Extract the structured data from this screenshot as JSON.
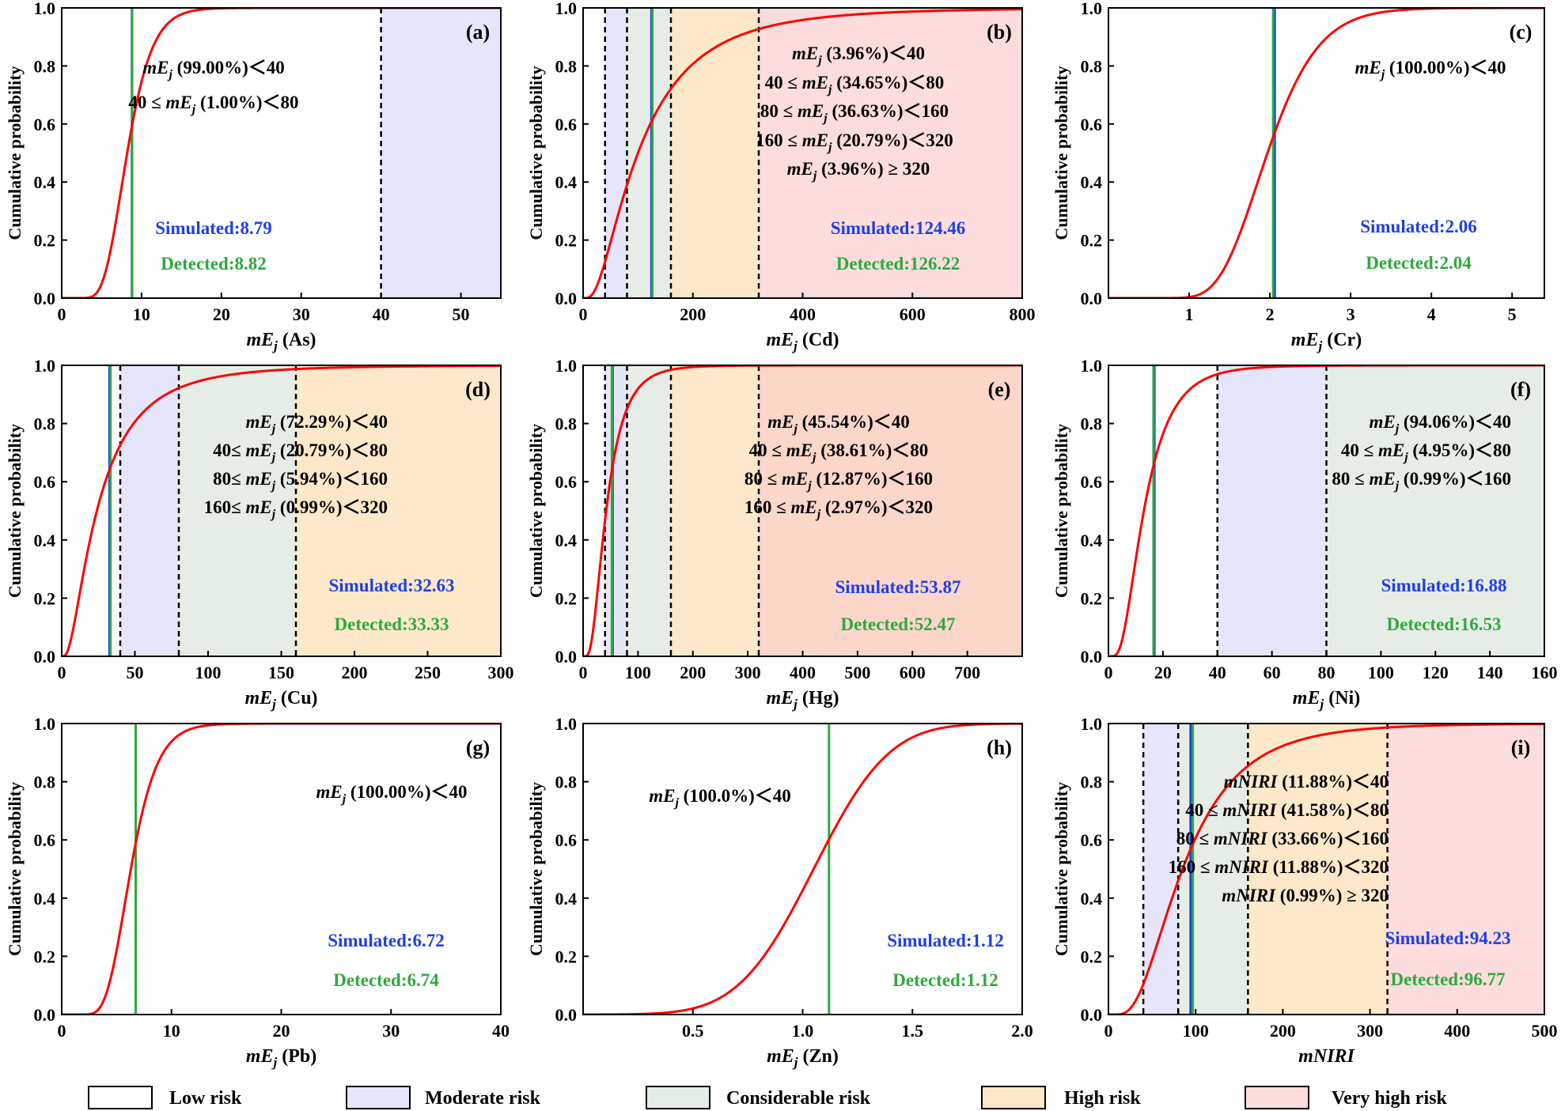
{
  "colors": {
    "low": "#ffffff",
    "moderate": "#e6e6fa",
    "considerable": "#e6ede6",
    "high": "#fde9c9",
    "very_high": "#fcdcdc",
    "very_high_e": "#fbd6c9",
    "curve": "#ff0000",
    "simulated": "#1f3fe6",
    "detected": "#2eaa3e",
    "sim_line": "#1f3fe6",
    "det_line": "#2eaa3e"
  },
  "legend": [
    {
      "key": "low",
      "label": "Low risk"
    },
    {
      "key": "moderate",
      "label": "Moderate risk"
    },
    {
      "key": "considerable",
      "label": "Considerable risk"
    },
    {
      "key": "high",
      "label": "High risk"
    },
    {
      "key": "very_high",
      "label": "Very high risk"
    }
  ],
  "chart_data": [
    {
      "id": "a",
      "type": "line",
      "panel_label": "(a)",
      "ylabel": "Cumulative probability",
      "xlabel": "mEj (As)",
      "xlabel_main": "mE",
      "xlabel_sub": "j",
      "xlabel_suffix": " (As)",
      "xlim": [
        0,
        55
      ],
      "ylim": [
        0,
        1
      ],
      "xticks": [
        0,
        10,
        20,
        30,
        40,
        50
      ],
      "yticks": [
        0.0,
        0.2,
        0.4,
        0.6,
        0.8,
        1.0
      ],
      "dist": {
        "kind": "lognormal",
        "median": 8.2,
        "sigma": 0.3
      },
      "bands": [
        {
          "from": 40,
          "to": 55,
          "key": "moderate"
        }
      ],
      "dashed": [
        40
      ],
      "lines": [
        {
          "x": 8.79,
          "color": "sim_line"
        },
        {
          "x": 8.82,
          "color": "det_line"
        }
      ],
      "annotations": [
        {
          "pre": "",
          "mid": "mE",
          "sub": "j",
          "post": " (99.00%)＜40"
        },
        {
          "pre": "40 ≤ ",
          "mid": "mE",
          "sub": "j",
          "post": " (1.00%)＜80"
        }
      ],
      "simulated": "Simulated:8.79",
      "detected": "Detected:8.82"
    },
    {
      "id": "b",
      "type": "line",
      "panel_label": "(b)",
      "ylabel": "Cumulative probability",
      "xlabel": "mEj (Cd)",
      "xlabel_main": "mE",
      "xlabel_sub": "j",
      "xlabel_suffix": " (Cd)",
      "xlim": [
        0,
        800
      ],
      "ylim": [
        0,
        1
      ],
      "xticks": [
        0,
        200,
        400,
        600,
        800
      ],
      "yticks": [
        0.0,
        0.2,
        0.4,
        0.6,
        0.8,
        1.0
      ],
      "dist": {
        "kind": "lognormal",
        "median": 100,
        "sigma": 0.8
      },
      "bands": [
        {
          "from": 40,
          "to": 80,
          "key": "moderate"
        },
        {
          "from": 80,
          "to": 160,
          "key": "considerable"
        },
        {
          "from": 160,
          "to": 320,
          "key": "high"
        },
        {
          "from": 320,
          "to": 800,
          "key": "very_high"
        }
      ],
      "dashed": [
        40,
        80,
        160,
        320
      ],
      "lines": [
        {
          "x": 124.46,
          "color": "sim_line"
        },
        {
          "x": 126.22,
          "color": "det_line"
        }
      ],
      "annotations": [
        {
          "pre": "",
          "mid": "mE",
          "sub": "j",
          "post": " (3.96%)＜40"
        },
        {
          "pre": "40 ≤ ",
          "mid": "mE",
          "sub": "j",
          "post": " (34.65%)＜80"
        },
        {
          "pre": "80 ≤ ",
          "mid": "mE",
          "sub": "j",
          "post": " (36.63%)＜160"
        },
        {
          "pre": "160 ≤ ",
          "mid": "mE",
          "sub": "j",
          "post": " (20.79%)＜320"
        },
        {
          "pre": "",
          "mid": "mE",
          "sub": "j",
          "post": " (3.96%) ≥ 320"
        }
      ],
      "simulated": "Simulated:124.46",
      "detected": "Detected:126.22"
    },
    {
      "id": "c",
      "type": "line",
      "panel_label": "(c)",
      "ylabel": "Cumulative probability",
      "xlabel": "mEj (Cr)",
      "xlabel_main": "mE",
      "xlabel_sub": "j",
      "xlabel_suffix": " (Cr)",
      "xlim": [
        0,
        5.4
      ],
      "ylim": [
        0,
        1
      ],
      "xticks": [
        1,
        2,
        3,
        4,
        5
      ],
      "yticks": [
        0.0,
        0.2,
        0.4,
        0.6,
        0.8,
        1.0
      ],
      "dist": {
        "kind": "lognormal",
        "median": 1.97,
        "sigma": 0.25
      },
      "bands": [],
      "dashed": [],
      "lines": [
        {
          "x": 2.06,
          "color": "sim_line"
        },
        {
          "x": 2.04,
          "color": "det_line"
        }
      ],
      "annotations": [
        {
          "pre": "",
          "mid": "mE",
          "sub": "j",
          "post": " (100.00%)＜40"
        }
      ],
      "simulated": "Simulated:2.06",
      "detected": "Detected:2.04"
    },
    {
      "id": "d",
      "type": "line",
      "panel_label": "(d)",
      "ylabel": "Cumulative probability",
      "xlabel": "mEj (Cu)",
      "xlabel_main": "mE",
      "xlabel_sub": "j",
      "xlabel_suffix": " (Cu)",
      "xlim": [
        0,
        300
      ],
      "ylim": [
        0,
        1
      ],
      "xticks": [
        0,
        50,
        100,
        150,
        200,
        250,
        300
      ],
      "yticks": [
        0.0,
        0.2,
        0.4,
        0.6,
        0.8,
        1.0
      ],
      "dist": {
        "kind": "lognormal",
        "median": 24,
        "sigma": 0.85
      },
      "bands": [
        {
          "from": 40,
          "to": 80,
          "key": "moderate"
        },
        {
          "from": 80,
          "to": 160,
          "key": "considerable"
        },
        {
          "from": 160,
          "to": 300,
          "key": "high"
        }
      ],
      "dashed": [
        40,
        80,
        160
      ],
      "lines": [
        {
          "x": 32.63,
          "color": "sim_line"
        },
        {
          "x": 33.33,
          "color": "det_line"
        }
      ],
      "annotations": [
        {
          "pre": "",
          "mid": "mE",
          "sub": "j",
          "post": " (72.29%)＜40"
        },
        {
          "pre": "40≤ ",
          "mid": "mE",
          "sub": "j",
          "post": " (20.79%)＜80"
        },
        {
          "pre": "80≤ ",
          "mid": "mE",
          "sub": "j",
          "post": " (5.94%)＜160"
        },
        {
          "pre": "160≤ ",
          "mid": "mE",
          "sub": "j",
          "post": " (0.99%)＜320"
        }
      ],
      "simulated": "Simulated:32.63",
      "detected": "Detected:33.33"
    },
    {
      "id": "e",
      "type": "line",
      "panel_label": "(e)",
      "ylabel": "Cumulative probability",
      "xlabel": "mEj (Hg)",
      "xlabel_main": "mE",
      "xlabel_sub": "j",
      "xlabel_suffix": " (Hg)",
      "xlim": [
        0,
        800
      ],
      "ylim": [
        0,
        1
      ],
      "xticks": [
        0,
        100,
        200,
        300,
        400,
        500,
        600,
        700
      ],
      "yticks": [
        0.0,
        0.2,
        0.4,
        0.6,
        0.8,
        1.0
      ],
      "dist": {
        "kind": "lognormal",
        "median": 42,
        "sigma": 0.62
      },
      "bands": [
        {
          "from": 40,
          "to": 80,
          "key": "moderate"
        },
        {
          "from": 80,
          "to": 160,
          "key": "considerable"
        },
        {
          "from": 160,
          "to": 320,
          "key": "high"
        },
        {
          "from": 320,
          "to": 800,
          "key": "very_high_e"
        }
      ],
      "dashed": [
        40,
        80,
        160,
        320
      ],
      "lines": [
        {
          "x": 53.87,
          "color": "sim_line"
        },
        {
          "x": 52.47,
          "color": "det_line"
        }
      ],
      "annotations": [
        {
          "pre": "",
          "mid": "mE",
          "sub": "j",
          "post": " (45.54%)＜40"
        },
        {
          "pre": "40 ≤ ",
          "mid": "mE",
          "sub": "j",
          "post": " (38.61%)＜80"
        },
        {
          "pre": "80 ≤ ",
          "mid": "mE",
          "sub": "j",
          "post": " (12.87%)＜160"
        },
        {
          "pre": "160 ≤ ",
          "mid": "mE",
          "sub": "j",
          "post": " (2.97%)＜320"
        }
      ],
      "simulated": "Simulated:53.87",
      "detected": "Detected:52.47"
    },
    {
      "id": "f",
      "type": "line",
      "panel_label": "(f)",
      "ylabel": "Cumulative probability",
      "xlabel": "mEj (Ni)",
      "xlabel_main": "mE",
      "xlabel_sub": "j",
      "xlabel_suffix": " (Ni)",
      "xlim": [
        0,
        160
      ],
      "ylim": [
        0,
        1
      ],
      "xticks": [
        0,
        20,
        40,
        60,
        80,
        100,
        120,
        140,
        160
      ],
      "yticks": [
        0.0,
        0.2,
        0.4,
        0.6,
        0.8,
        1.0
      ],
      "dist": {
        "kind": "lognormal",
        "median": 13,
        "sigma": 0.6
      },
      "bands": [
        {
          "from": 40,
          "to": 80,
          "key": "moderate"
        },
        {
          "from": 80,
          "to": 160,
          "key": "considerable"
        }
      ],
      "dashed": [
        40,
        80
      ],
      "lines": [
        {
          "x": 16.88,
          "color": "sim_line"
        },
        {
          "x": 16.53,
          "color": "det_line"
        }
      ],
      "annotations": [
        {
          "pre": "",
          "mid": "mE",
          "sub": "j",
          "post": " (94.06%)＜40"
        },
        {
          "pre": "40 ≤ ",
          "mid": "mE",
          "sub": "j",
          "post": " (4.95%)＜80"
        },
        {
          "pre": "80 ≤ ",
          "mid": "mE",
          "sub": "j",
          "post": " (0.99%)＜160"
        }
      ],
      "simulated": "Simulated:16.88",
      "detected": "Detected:16.53"
    },
    {
      "id": "g",
      "type": "line",
      "panel_label": "(g)",
      "ylabel": "Cumulative probability",
      "xlabel": "mEj (Pb)",
      "xlabel_main": "mE",
      "xlabel_sub": "j",
      "xlabel_suffix": " (Pb)",
      "xlim": [
        0,
        40
      ],
      "ylim": [
        0,
        1
      ],
      "xticks": [
        0,
        10,
        20,
        30,
        40
      ],
      "yticks": [
        0.0,
        0.2,
        0.4,
        0.6,
        0.8,
        1.0
      ],
      "dist": {
        "kind": "lognormal",
        "median": 6.3,
        "sigma": 0.3
      },
      "bands": [],
      "dashed": [],
      "lines": [
        {
          "x": 6.74,
          "color": "det_line"
        }
      ],
      "annotations": [
        {
          "pre": "",
          "mid": "mE",
          "sub": "j",
          "post": " (100.00%)＜40"
        }
      ],
      "simulated": "Simulated:6.72",
      "detected": "Detected:6.74"
    },
    {
      "id": "h",
      "type": "line",
      "panel_label": "(h)",
      "ylabel": "Cumulative probability",
      "xlabel": "mEj (Zn)",
      "xlabel_main": "mE",
      "xlabel_sub": "j",
      "xlabel_suffix": " (Zn)",
      "xlim": [
        0,
        2.0
      ],
      "ylim": [
        0,
        1
      ],
      "xticks": [
        0.5,
        1.0,
        1.5,
        2.0
      ],
      "yticks": [
        0.0,
        0.2,
        0.4,
        0.6,
        0.8,
        1.0
      ],
      "dist": {
        "kind": "normal",
        "mean": 1.05,
        "sd": 0.27
      },
      "bands": [],
      "dashed": [],
      "lines": [
        {
          "x": 1.12,
          "color": "det_line"
        }
      ],
      "annotations": [
        {
          "pre": "",
          "mid": "mE",
          "sub": "j",
          "post": " (100.0%)＜40"
        }
      ],
      "simulated": "Simulated:1.12",
      "detected": "Detected:1.12"
    },
    {
      "id": "i",
      "type": "line",
      "panel_label": "(i)",
      "ylabel": "Cumulative probability",
      "xlabel": "mNIRI",
      "xlabel_main": "mNIRI",
      "xlabel_sub": "",
      "xlabel_suffix": "",
      "xlim": [
        0,
        500
      ],
      "ylim": [
        0,
        1
      ],
      "xticks": [
        0,
        100,
        200,
        300,
        400,
        500
      ],
      "yticks": [
        0.0,
        0.2,
        0.4,
        0.6,
        0.8,
        1.0
      ],
      "dist": {
        "kind": "lognormal",
        "median": 85,
        "sigma": 0.6
      },
      "bands": [
        {
          "from": 40,
          "to": 80,
          "key": "moderate"
        },
        {
          "from": 80,
          "to": 160,
          "key": "considerable"
        },
        {
          "from": 160,
          "to": 320,
          "key": "high"
        },
        {
          "from": 320,
          "to": 500,
          "key": "very_high"
        }
      ],
      "dashed": [
        40,
        80,
        160,
        320
      ],
      "lines": [
        {
          "x": 94.23,
          "color": "sim_line"
        },
        {
          "x": 96.77,
          "color": "det_line"
        }
      ],
      "annotations": [
        {
          "pre": "",
          "mid": "mNIRI",
          "sub": "",
          "post": " (11.88%)＜40"
        },
        {
          "pre": "40 ≤ ",
          "mid": "mNIRI",
          "sub": "",
          "post": " (41.58%)＜80"
        },
        {
          "pre": "80 ≤ ",
          "mid": "mNIRI",
          "sub": "",
          "post": " (33.66%)＜160"
        },
        {
          "pre": "160 ≤ ",
          "mid": "mNIRI",
          "sub": "",
          "post": " (11.88%)＜320"
        },
        {
          "pre": "",
          "mid": "mNIRI",
          "sub": "",
          "post": " (0.99%) ≥ 320"
        }
      ],
      "simulated": "Simulated:94.23",
      "detected": "Detected:96.77"
    }
  ]
}
